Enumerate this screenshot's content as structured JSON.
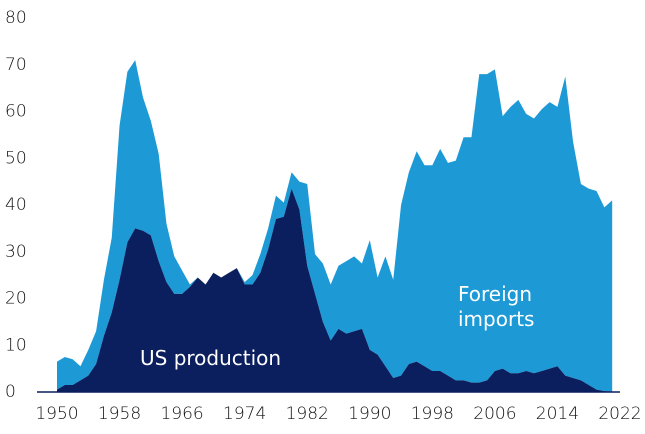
{
  "chart_data": {
    "type": "stacked_area",
    "x": [
      1950,
      1951,
      1952,
      1953,
      1954,
      1955,
      1956,
      1957,
      1958,
      1959,
      1960,
      1961,
      1962,
      1963,
      1964,
      1965,
      1966,
      1967,
      1968,
      1969,
      1970,
      1971,
      1972,
      1973,
      1974,
      1975,
      1976,
      1977,
      1978,
      1979,
      1980,
      1981,
      1982,
      1983,
      1984,
      1985,
      1986,
      1987,
      1988,
      1989,
      1990,
      1991,
      1992,
      1993,
      1994,
      1995,
      1996,
      1997,
      1998,
      1999,
      2000,
      2001,
      2002,
      2003,
      2004,
      2005,
      2006,
      2007,
      2008,
      2009,
      2010,
      2011,
      2012,
      2013,
      2014,
      2015,
      2016,
      2017,
      2018,
      2019,
      2020,
      2021
    ],
    "series": [
      {
        "name": "US production",
        "color": "#0b1f5e",
        "values": [
          0.5,
          1.5,
          1.5,
          2.5,
          3.5,
          6,
          12,
          17,
          24,
          32,
          35,
          34.5,
          33.5,
          28,
          23.5,
          21,
          21,
          22.5,
          24.5,
          23,
          25.5,
          24.5,
          25.5,
          26.5,
          23,
          23,
          25.5,
          30.5,
          37,
          37.5,
          43.5,
          39,
          27,
          21,
          15,
          11,
          13.5,
          12.5,
          13,
          13.5,
          9,
          8,
          5.5,
          3,
          3.5,
          6,
          6.5,
          5.5,
          4.5,
          4.5,
          3.5,
          2.5,
          2.5,
          2,
          2,
          2.5,
          4.5,
          5,
          4,
          4,
          4.5,
          4,
          4.5,
          5,
          5.5,
          3.5,
          3,
          2.5,
          1.5,
          0.5,
          0.2,
          0.1
        ]
      },
      {
        "name": "Foreign imports",
        "color": "#1d9ad6",
        "values": [
          6,
          6,
          5.5,
          3,
          5.5,
          7,
          12,
          16,
          33,
          36.5,
          36,
          28.5,
          24.5,
          23,
          12.5,
          8,
          5,
          0.5,
          0,
          0,
          0,
          0,
          0,
          0,
          0.5,
          2,
          4,
          4.5,
          5,
          3,
          3.5,
          6,
          17.5,
          8.5,
          12.5,
          12,
          13.5,
          15.5,
          16,
          14,
          23.5,
          16.5,
          23.5,
          21,
          36.5,
          41,
          45,
          43,
          44,
          47.5,
          45.5,
          47,
          52,
          52.5,
          66,
          65.5,
          64.5,
          54,
          57,
          58.5,
          55,
          54.5,
          56,
          57,
          55.5,
          64,
          50.5,
          42,
          42,
          42.5,
          39.3,
          40.9
        ]
      }
    ],
    "xlim": [
      1950,
      2022
    ],
    "xticks": [
      1950,
      1958,
      1966,
      1974,
      1982,
      1990,
      1998,
      2006,
      2014,
      2022
    ],
    "ylim": [
      0,
      80
    ],
    "yticks": [
      0,
      10,
      20,
      30,
      40,
      50,
      60,
      70,
      80
    ]
  }
}
